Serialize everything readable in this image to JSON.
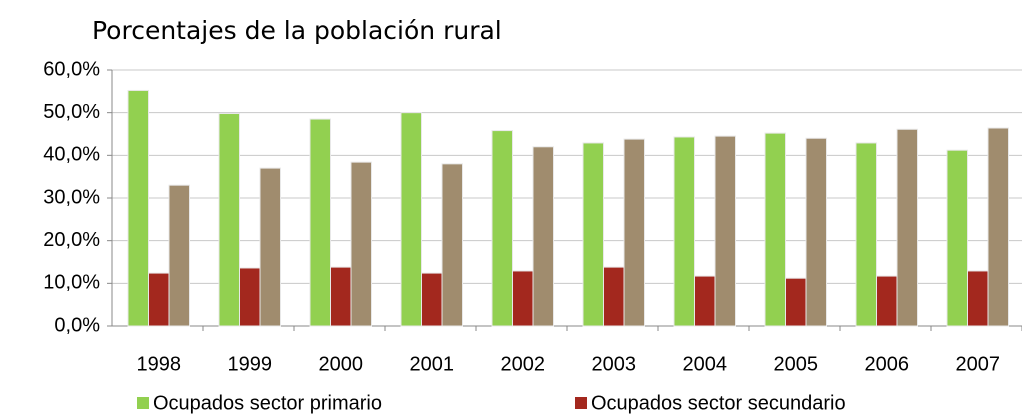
{
  "chart_data": {
    "type": "bar",
    "title": "Porcentajes de la población rural",
    "categories": [
      "1998",
      "1999",
      "2000",
      "2001",
      "2002",
      "2003",
      "2004",
      "2005",
      "2006",
      "2007"
    ],
    "series": [
      {
        "name": "Ocupados sector primario",
        "color": "#92d050",
        "values": [
          55.2,
          49.8,
          48.5,
          50.0,
          45.8,
          42.9,
          44.3,
          45.2,
          42.9,
          41.2
        ]
      },
      {
        "name": "Ocupados sector secundario",
        "color": "#a3281e",
        "values": [
          12.4,
          13.6,
          13.8,
          12.4,
          12.9,
          13.8,
          11.7,
          11.2,
          11.7,
          12.9
        ]
      },
      {
        "color": "#a08c6e",
        "values": [
          33.0,
          37.0,
          38.4,
          38.0,
          42.0,
          43.8,
          44.5,
          44.0,
          46.1,
          46.4
        ]
      }
    ],
    "ylim": [
      0,
      60
    ],
    "yticks": [
      {
        "value": 0,
        "label": "0,0%"
      },
      {
        "value": 10,
        "label": "10,0%"
      },
      {
        "value": 20,
        "label": "20,0%"
      },
      {
        "value": 30,
        "label": "30,0%"
      },
      {
        "value": 40,
        "label": "40,0%"
      },
      {
        "value": 50,
        "label": "50,0%"
      },
      {
        "value": 60,
        "label": "60,0%"
      }
    ],
    "grid": true
  }
}
